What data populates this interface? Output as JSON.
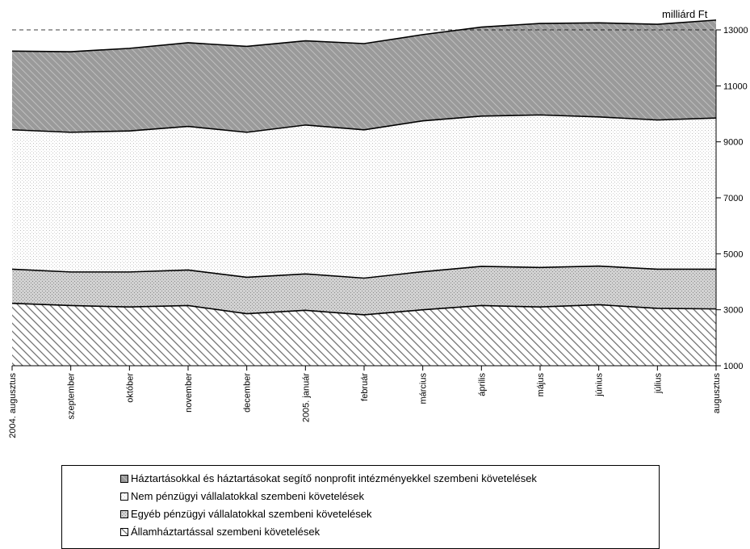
{
  "unit_label": "milliárd Ft",
  "chart_data": {
    "type": "area",
    "stacked": true,
    "categories": [
      "2004. augusztus",
      "szeptember",
      "október",
      "november",
      "december",
      "2005. január",
      "február",
      "március",
      "április",
      "május",
      "június",
      "július",
      "augusztus"
    ],
    "series": [
      {
        "name": "Államháztartással szembeni követelések",
        "values": [
          3230,
          3150,
          3100,
          3150,
          2860,
          2980,
          2820,
          3000,
          3150,
          3100,
          3180,
          3050,
          3030
        ]
      },
      {
        "name": "Egyéb pénzügyi vállalatokkal szembeni követelések",
        "values": [
          1220,
          1200,
          1250,
          1270,
          1300,
          1300,
          1310,
          1360,
          1400,
          1410,
          1380,
          1400,
          1420
        ]
      },
      {
        "name": "Nem pénzügyi vállalatokkal szembeni követelések",
        "values": [
          4980,
          4990,
          5040,
          5130,
          5180,
          5320,
          5300,
          5390,
          5370,
          5450,
          5330,
          5330,
          5400
        ]
      },
      {
        "name": "Háztartásokkal és háztartásokat segítő nonprofit intézményekkel szembeni követelések",
        "values": [
          2810,
          2880,
          2950,
          2990,
          3070,
          3010,
          3080,
          3080,
          3180,
          3270,
          3360,
          3420,
          3500
        ]
      }
    ],
    "legend_order": [
      3,
      2,
      1,
      0
    ],
    "reference_line": 13000,
    "y_axis": {
      "min": 1000,
      "max": 13000,
      "ticks": [
        1000,
        3000,
        5000,
        7000,
        9000,
        11000,
        13000
      ],
      "position": "right"
    },
    "legend": "bottom",
    "grid": false
  }
}
